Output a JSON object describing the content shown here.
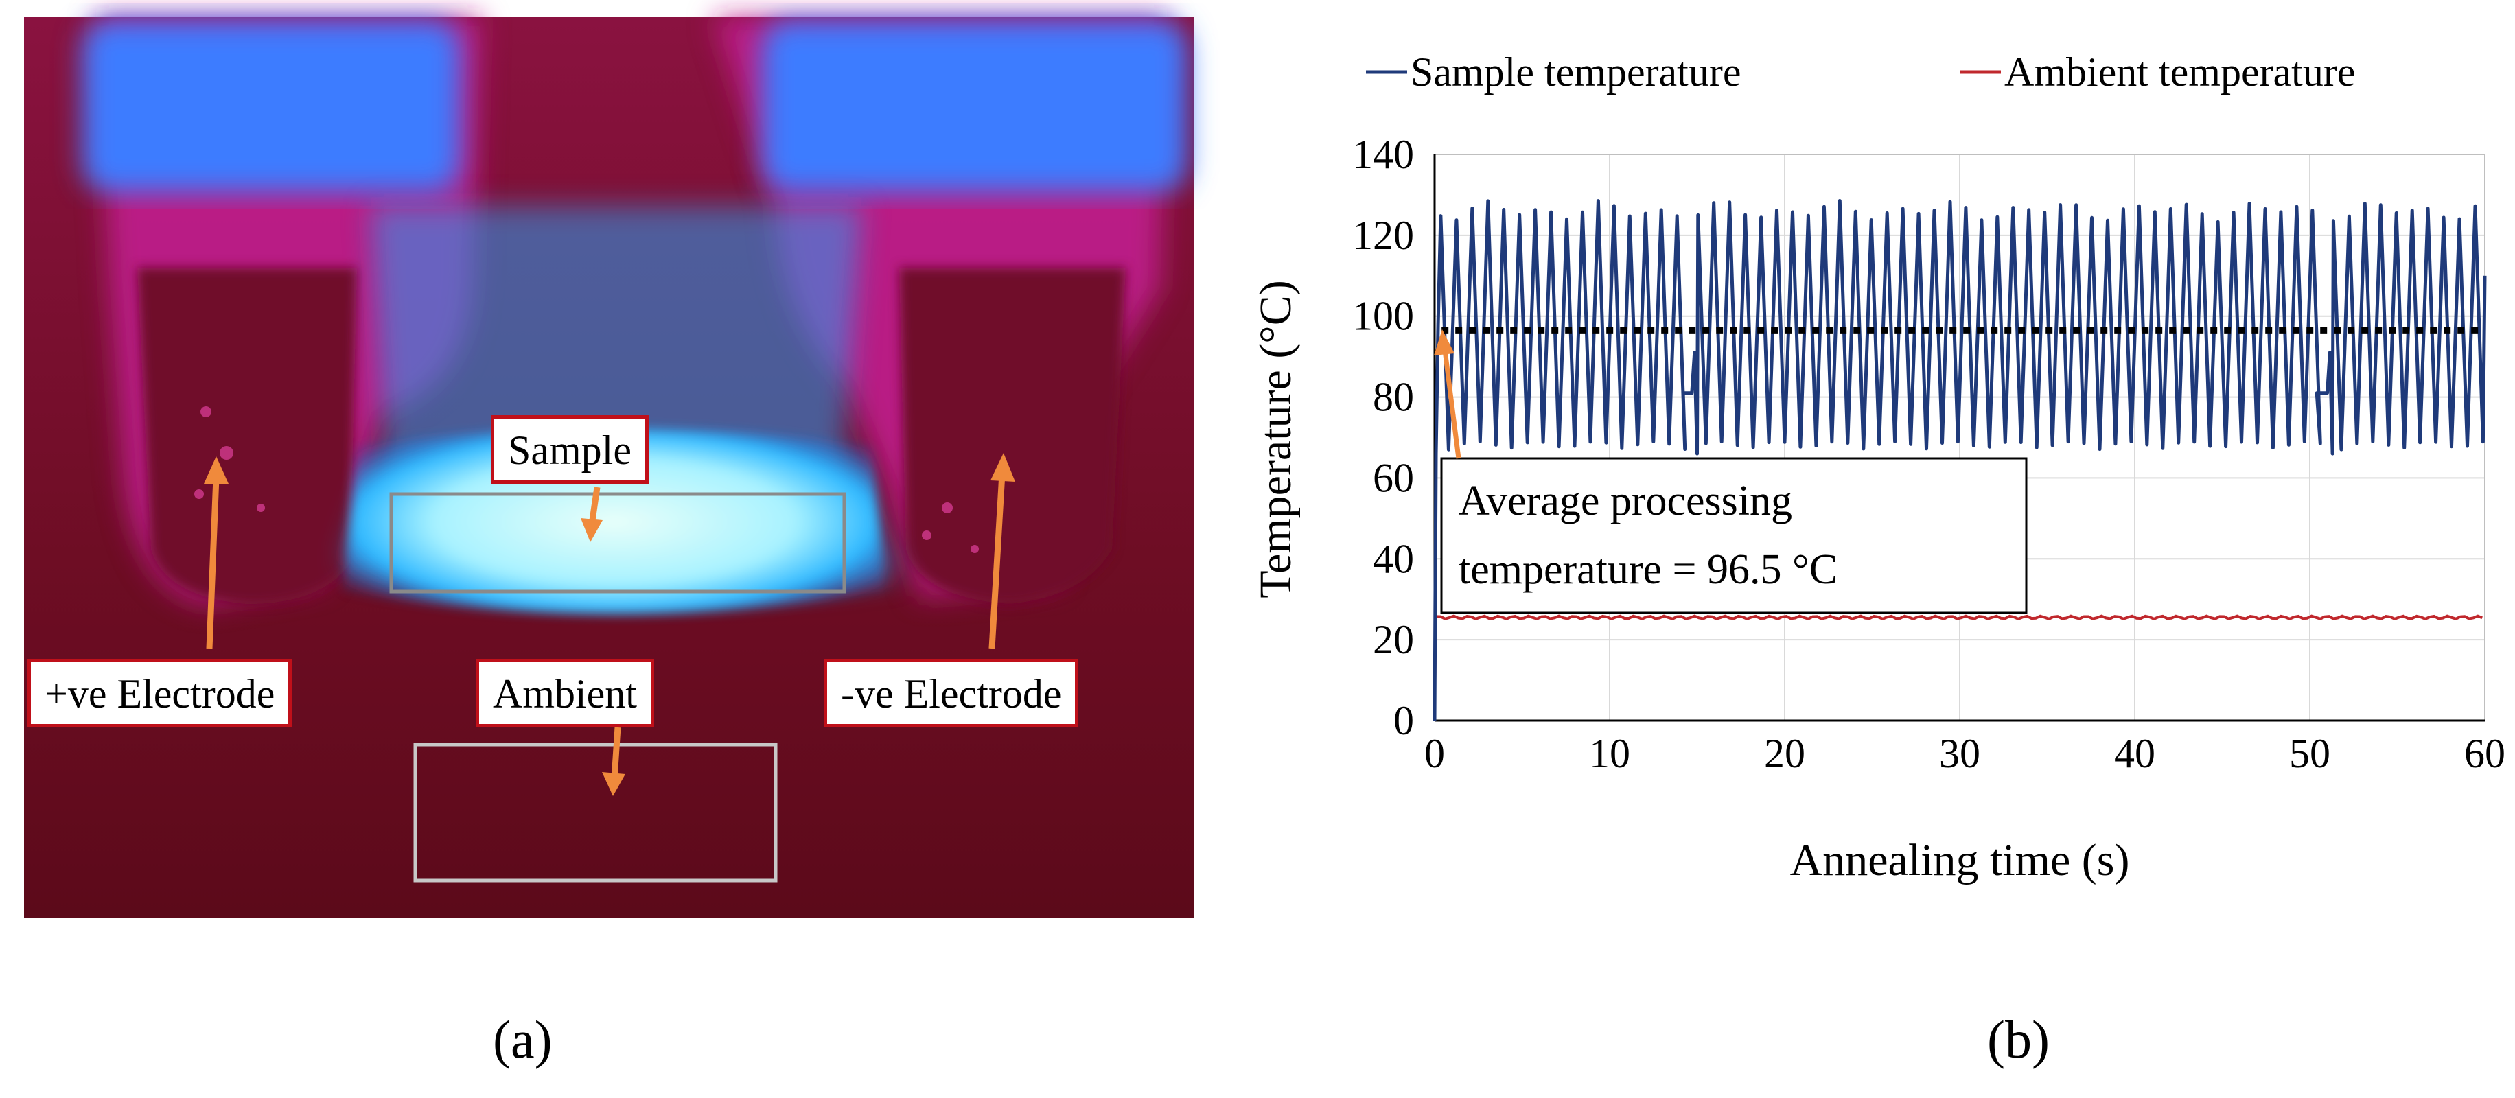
{
  "panel_a": {
    "label": "(a)",
    "annotations": {
      "sample": "Sample",
      "ambient": "Ambient",
      "positive_electrode": "+ve Electrode",
      "negative_electrode": "-ve Electrode"
    },
    "colors": {
      "background": "#7a0f2a",
      "hot": "#e8fff9",
      "glow": "#2fb8ff",
      "rim": "#ff2f9a",
      "arrow": "#f08a3c",
      "callout_border": "#c0101a"
    }
  },
  "panel_b": {
    "label": "(b)",
    "chart_data": {
      "type": "line",
      "title": "",
      "xlabel": "Annealing time (s)",
      "ylabel": "Temperature (°C)",
      "xlim": [
        0,
        60
      ],
      "ylim": [
        0,
        140
      ],
      "xticks": [
        0,
        10,
        20,
        30,
        40,
        50,
        60
      ],
      "yticks": [
        0,
        20,
        40,
        60,
        80,
        100,
        120,
        140
      ],
      "grid": true,
      "legend_position": "top",
      "series": [
        {
          "name": "Sample temperature",
          "color": "#1f3a7a",
          "description": "oscillating between ~66 and ~128 °C with period ~0.9 s; brief plateaus near 81 °C at ~14.5 s and ~50.5 s",
          "cycle_period_s": 0.9,
          "min": 66,
          "max": 128,
          "plateaus": [
            {
              "start": 14.2,
              "end": 15.0,
              "value": 81
            },
            {
              "start": 50.4,
              "end": 51.3,
              "value": 81
            }
          ]
        },
        {
          "name": "Ambient temperature",
          "color": "#c0282d",
          "value": 25.5
        }
      ],
      "reference_line": {
        "value": 96.5,
        "style": "dotted",
        "color": "#000000"
      },
      "annotation": {
        "line1": "Average processing",
        "line2": "temperature = 96.5 °C",
        "points_to": {
          "x": 0.4,
          "y": 96.5
        }
      }
    }
  }
}
